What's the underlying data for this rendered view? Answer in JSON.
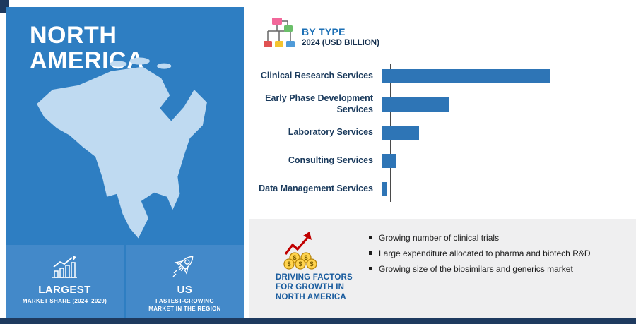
{
  "region_panel": {
    "title_line1": "NORTH",
    "title_line2": "AMERICA",
    "map": "north-america-silhouette",
    "stats": [
      {
        "icon": "bar-chart-growth-icon",
        "title": "LARGEST",
        "subtitle": "MARKET SHARE (2024–2029)"
      },
      {
        "icon": "rocket-icon",
        "title": "US",
        "subtitle": "FASTEST-GROWING MARKET IN THE REGION"
      }
    ]
  },
  "chart": {
    "icon": "sitemap-icon",
    "heading": "BY TYPE",
    "subheading": "2024 (USD BILLION)"
  },
  "chart_data": {
    "type": "bar",
    "orientation": "horizontal",
    "title": "BY TYPE",
    "subtitle": "2024 (USD BILLION)",
    "categories": [
      "Clinical Research Services",
      "Early Phase Development Services",
      "Laboratory Services",
      "Consulting Services",
      "Data Management Services"
    ],
    "values": [
      47.5,
      19,
      10.5,
      4,
      1.5
    ],
    "xlim": [
      0,
      50
    ],
    "xlabel": "",
    "ylabel": "",
    "grid": false,
    "legend": false,
    "bar_color": "#2e75b6"
  },
  "driving_factors": {
    "icon": "coins-growth-icon",
    "heading_lines": [
      "DRIVING FACTORS",
      "FOR GROWTH IN",
      "NORTH AMERICA"
    ],
    "bullets": [
      "Growing number of clinical trials",
      "Large expenditure allocated to pharma and biotech R&D",
      "Growing size of the biosimilars and generics market"
    ]
  },
  "colors": {
    "panel_blue": "#2e7ec2",
    "tile_blue": "#4389c9",
    "map_fill": "#bfdaf1",
    "bar_blue": "#2e75b6",
    "navy_strip": "#1e3a5f",
    "heading_blue": "#1b6fb5",
    "df_heading_blue": "#1a5c9e",
    "gray_panel": "#efeff0"
  }
}
